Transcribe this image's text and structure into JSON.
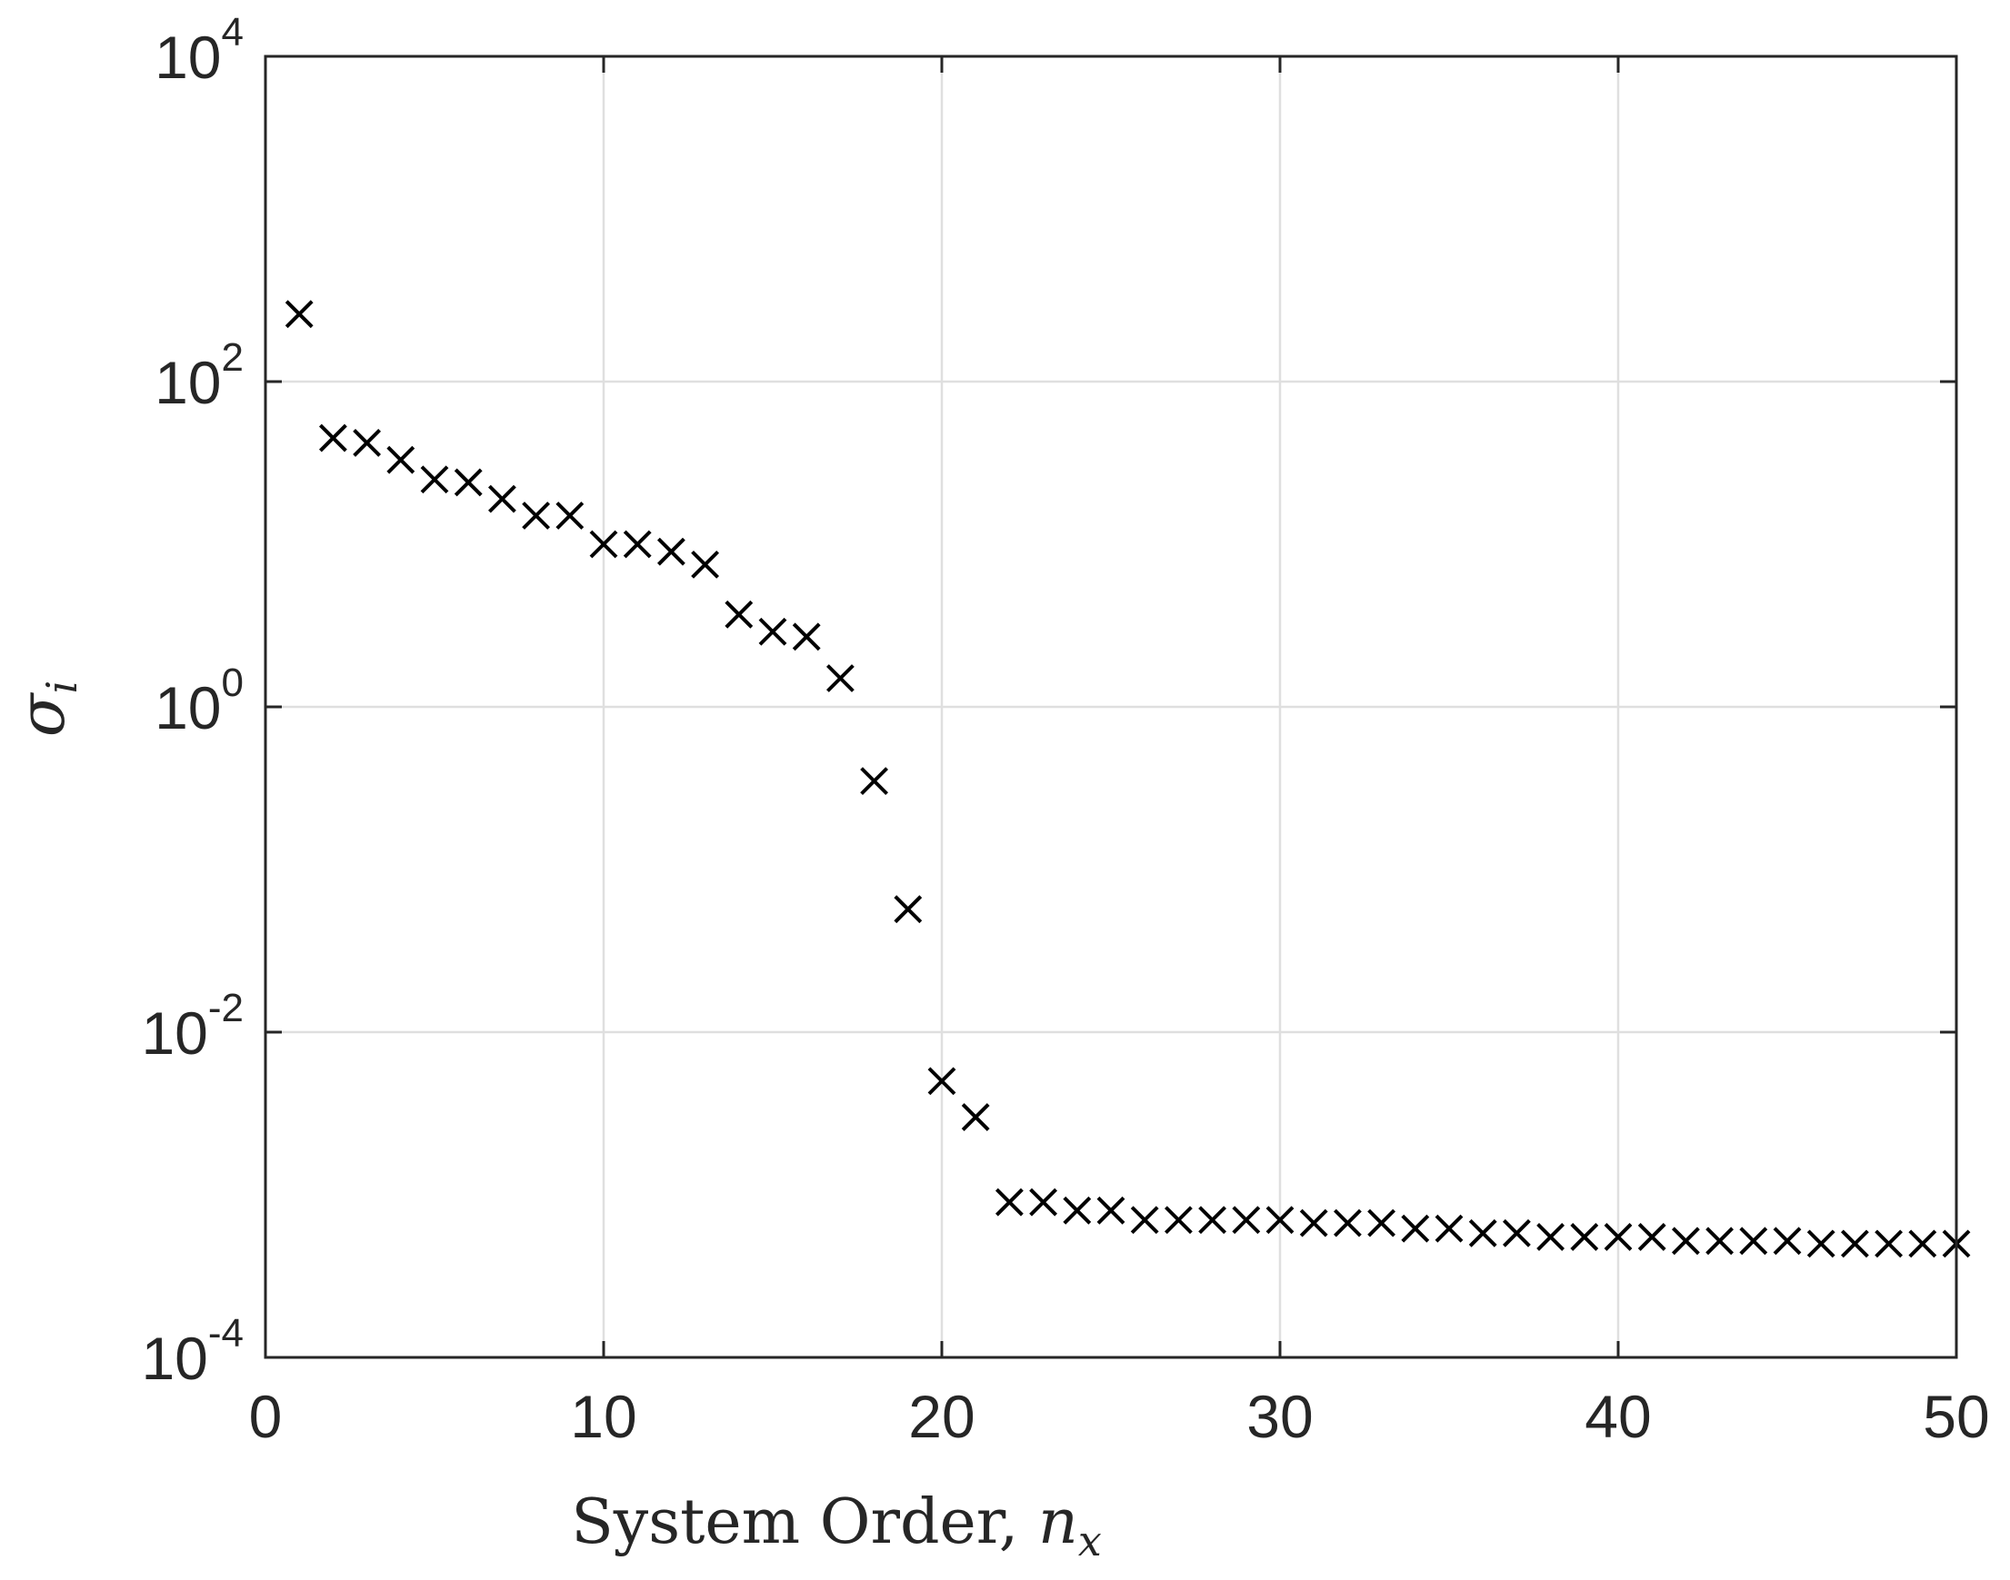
{
  "chart_data": {
    "type": "scatter",
    "marker": "x",
    "marker_color": "#000000",
    "grid": true,
    "grid_color": "#dfdfdf",
    "x_scale": "linear",
    "y_scale": "log",
    "xlim": [
      0,
      50
    ],
    "ylim": [
      0.0001,
      10000
    ],
    "x_ticks": [
      0,
      10,
      20,
      30,
      40,
      50
    ],
    "y_ticks": [
      {
        "base": "10",
        "exp": "-4",
        "value": 0.0001
      },
      {
        "base": "10",
        "exp": "-2",
        "value": 0.01
      },
      {
        "base": "10",
        "exp": "0",
        "value": 1
      },
      {
        "base": "10",
        "exp": "2",
        "value": 100
      },
      {
        "base": "10",
        "exp": "4",
        "value": 10000
      }
    ],
    "xlabel": {
      "text": "System Order, ",
      "var": "n",
      "sub": "x"
    },
    "ylabel": {
      "var": "σ",
      "sub": "i"
    },
    "x": [
      1,
      2,
      3,
      4,
      5,
      6,
      7,
      8,
      9,
      10,
      11,
      12,
      13,
      14,
      15,
      16,
      17,
      18,
      19,
      20,
      21,
      22,
      23,
      24,
      25,
      26,
      27,
      28,
      29,
      30,
      31,
      32,
      33,
      34,
      35,
      36,
      37,
      38,
      39,
      40,
      41,
      42,
      43,
      44,
      45,
      46,
      47,
      48,
      49,
      50
    ],
    "y": [
      260,
      45,
      42,
      33,
      25,
      24,
      19,
      15,
      15,
      10,
      10,
      9,
      7.5,
      3.7,
      2.9,
      2.7,
      1.5,
      0.35,
      0.057,
      0.005,
      0.003,
      0.0009,
      0.0009,
      0.0008,
      0.0008,
      0.0007,
      0.0007,
      0.0007,
      0.0007,
      0.0007,
      0.00067,
      0.00067,
      0.00067,
      0.00062,
      0.00062,
      0.00058,
      0.00058,
      0.00055,
      0.00055,
      0.00055,
      0.00055,
      0.00052,
      0.00052,
      0.00052,
      0.00052,
      0.0005,
      0.0005,
      0.0005,
      0.0005,
      0.0005
    ]
  }
}
